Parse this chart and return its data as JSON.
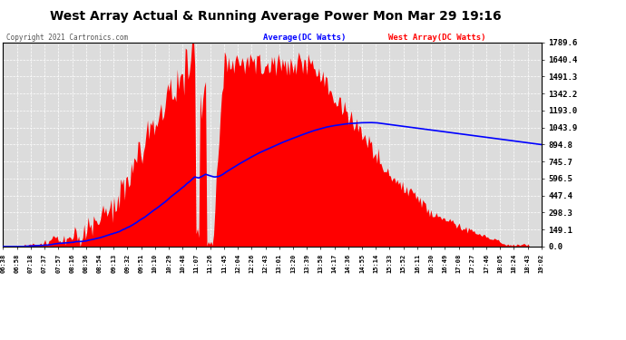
{
  "title": "West Array Actual & Running Average Power Mon Mar 29 19:16",
  "copyright": "Copyright 2021 Cartronics.com",
  "legend_average": "Average(DC Watts)",
  "legend_west": "West Array(DC Watts)",
  "ytick_labels": [
    "0.0",
    "149.1",
    "298.3",
    "447.4",
    "596.5",
    "745.7",
    "894.8",
    "1043.9",
    "1193.0",
    "1342.2",
    "1491.3",
    "1640.4",
    "1789.6"
  ],
  "ytick_values": [
    0.0,
    149.1,
    298.3,
    447.4,
    596.5,
    745.7,
    894.8,
    1043.9,
    1193.0,
    1342.2,
    1491.3,
    1640.4,
    1789.6
  ],
  "ymax": 1789.6,
  "ymin": 0.0,
  "bg_color": "#ffffff",
  "plot_bg_color": "#dcdcdc",
  "grid_color": "#ffffff",
  "fill_color": "#ff0000",
  "line_color": "#0000ff",
  "title_color": "#000000",
  "copyright_color": "#000000",
  "legend_avg_color": "#0000ff",
  "legend_west_color": "#ff0000",
  "xtick_labels": [
    "06:38",
    "06:58",
    "07:18",
    "07:37",
    "07:57",
    "08:16",
    "08:36",
    "08:54",
    "09:13",
    "09:32",
    "09:51",
    "10:10",
    "10:29",
    "10:48",
    "11:07",
    "11:26",
    "11:45",
    "12:04",
    "12:26",
    "12:43",
    "13:01",
    "13:20",
    "13:39",
    "13:58",
    "14:17",
    "14:36",
    "14:55",
    "15:14",
    "15:33",
    "15:52",
    "16:11",
    "16:30",
    "16:49",
    "17:08",
    "17:27",
    "17:46",
    "18:05",
    "18:24",
    "18:43",
    "19:02"
  ]
}
